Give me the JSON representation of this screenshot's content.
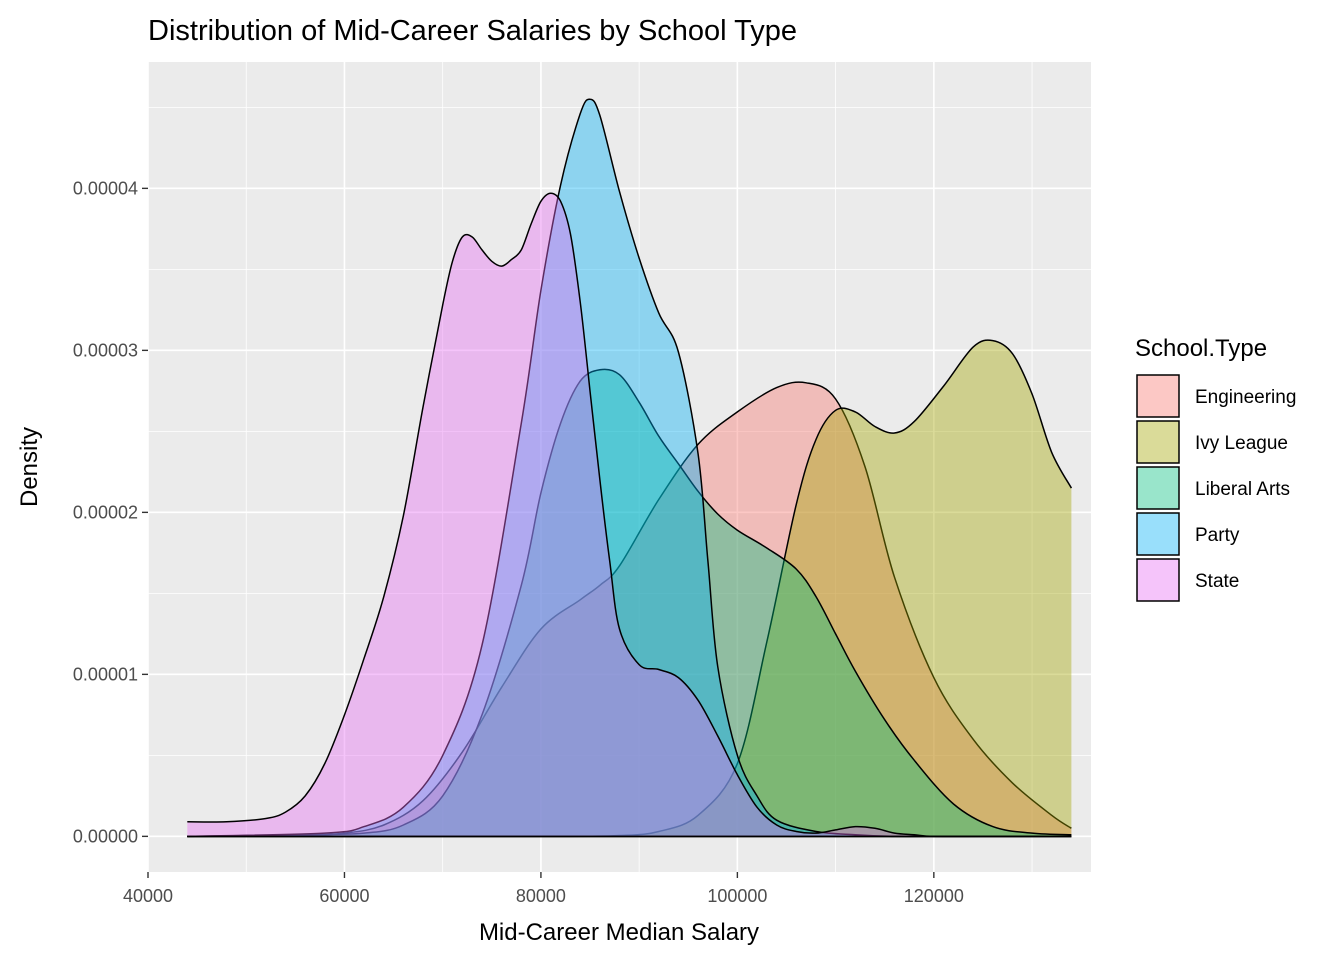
{
  "chart_data": {
    "type": "area",
    "title": "Distribution of Mid-Career Salaries by School Type",
    "xlabel": "Mid-Career Median Salary",
    "ylabel": "Density",
    "xlim": [
      40000,
      136000
    ],
    "ylim": [
      -2.2e-06,
      4.78e-05
    ],
    "x_ticks": [
      40000,
      60000,
      80000,
      100000,
      120000
    ],
    "x_tick_labels": [
      "40000",
      "60000",
      "80000",
      "100000",
      "120000"
    ],
    "y_ticks": [
      0,
      1e-05,
      2e-05,
      3e-05,
      4e-05
    ],
    "y_tick_labels": [
      "0.00000",
      "0.00001",
      "0.00002",
      "0.00003",
      "0.00004"
    ],
    "grid": true,
    "legend": {
      "title": "School.Type",
      "position": "right",
      "entries": [
        "Engineering",
        "Ivy League",
        "Liberal Arts",
        "Party",
        "State"
      ]
    },
    "series": [
      {
        "name": "Engineering",
        "color": "#F8766D",
        "x": [
          44000,
          55000,
          60000,
          64000,
          68000,
          72000,
          76000,
          80000,
          84000,
          86000,
          88000,
          92000,
          96000,
          100000,
          104000,
          107000,
          110000,
          113000,
          116000,
          120000,
          124000,
          128000,
          132000,
          134000
        ],
        "y": [
          0,
          5e-08,
          2e-07,
          7e-07,
          2.2e-06,
          5.2e-06,
          9.2e-06,
          1.28e-05,
          1.46e-05,
          1.55e-05,
          1.67e-05,
          2.08e-05,
          2.42e-05,
          2.62e-05,
          2.77e-05,
          2.8e-05,
          2.7e-05,
          2.28e-05,
          1.6e-05,
          9.8e-06,
          6e-06,
          3.3e-06,
          1.3e-06,
          5e-07
        ]
      },
      {
        "name": "Ivy League",
        "color": "#A3A500",
        "x": [
          44000,
          80000,
          88000,
          92000,
          96000,
          100000,
          103000,
          106000,
          108000,
          110000,
          112000,
          114000,
          116000,
          118000,
          121000,
          124000,
          126000,
          128000,
          130000,
          132000,
          134000
        ],
        "y": [
          0,
          0,
          5e-08,
          3e-07,
          1.3e-06,
          4.5e-06,
          1.2e-05,
          2.05e-05,
          2.45e-05,
          2.63e-05,
          2.62e-05,
          2.53e-05,
          2.49e-05,
          2.56e-05,
          2.78e-05,
          3.02e-05,
          3.06e-05,
          2.98e-05,
          2.73e-05,
          2.37e-05,
          2.15e-05
        ]
      },
      {
        "name": "Liberal Arts",
        "color": "#00BF7D",
        "x": [
          44000,
          56000,
          62000,
          66000,
          70000,
          74000,
          78000,
          80000,
          82000,
          84000,
          86000,
          88000,
          90000,
          92000,
          94000,
          96000,
          98000,
          100000,
          103000,
          106000,
          108000,
          110000,
          112000,
          115000,
          118000,
          122000,
          126000,
          130000,
          134000
        ],
        "y": [
          0,
          1e-07,
          2e-07,
          7e-07,
          2.5e-06,
          7.5e-06,
          1.55e-05,
          2.12e-05,
          2.55e-05,
          2.81e-05,
          2.88e-05,
          2.85e-05,
          2.68e-05,
          2.47e-05,
          2.3e-05,
          2.13e-05,
          1.99e-05,
          1.89e-05,
          1.78e-05,
          1.65e-05,
          1.48e-05,
          1.25e-05,
          1.02e-05,
          7.2e-06,
          4.7e-06,
          2e-06,
          6e-07,
          2e-07,
          1e-07
        ]
      },
      {
        "name": "Party",
        "color": "#00B0F6",
        "x": [
          44000,
          58000,
          62000,
          66000,
          70000,
          74000,
          78000,
          80000,
          82000,
          84000,
          85000,
          86000,
          88000,
          90000,
          92000,
          94000,
          96000,
          97000,
          98000,
          100000,
          102000,
          104000,
          108000,
          112000,
          116000,
          120000,
          134000
        ],
        "y": [
          0,
          2e-07,
          6e-07,
          1.8e-06,
          5e-06,
          1.18e-05,
          2.55e-05,
          3.37e-05,
          4.02e-05,
          4.46e-05,
          4.55e-05,
          4.45e-05,
          3.98e-05,
          3.57e-05,
          3.23e-05,
          2.99e-05,
          2.36e-05,
          1.7e-05,
          1.05e-05,
          5e-06,
          2.5e-06,
          1e-06,
          3e-07,
          1e-07,
          0,
          0,
          0
        ]
      },
      {
        "name": "State",
        "color": "#E76BF3",
        "x": [
          44000,
          48000,
          52000,
          54000,
          56000,
          58000,
          60000,
          62000,
          64000,
          66000,
          68000,
          70000,
          71000,
          72000,
          73000,
          74000,
          75000,
          76000,
          77000,
          78000,
          79000,
          80000,
          81000,
          82000,
          83000,
          84000,
          85000,
          86000,
          87000,
          88000,
          90000,
          92000,
          94000,
          96000,
          98000,
          100000,
          102000,
          104000,
          106000,
          108000,
          110000,
          112000,
          114000,
          116000,
          118000,
          120000,
          125000,
          130000,
          134000
        ],
        "y": [
          9e-07,
          9e-07,
          1.1e-06,
          1.5e-06,
          2.5e-06,
          4.5e-06,
          7.5e-06,
          1.1e-05,
          1.48e-05,
          1.98e-05,
          2.65e-05,
          3.28e-05,
          3.55e-05,
          3.7e-05,
          3.7e-05,
          3.62e-05,
          3.55e-05,
          3.52e-05,
          3.56e-05,
          3.62e-05,
          3.78e-05,
          3.92e-05,
          3.97e-05,
          3.92e-05,
          3.72e-05,
          3.3e-05,
          2.75e-05,
          2.2e-05,
          1.7e-05,
          1.28e-05,
          1.06e-05,
          1.03e-05,
          9.8e-06,
          8.4e-06,
          6.2e-06,
          3.8e-06,
          1.8e-06,
          7e-07,
          3e-07,
          2e-07,
          4e-07,
          6e-07,
          5e-07,
          2e-07,
          1e-07,
          0,
          0,
          0,
          0
        ]
      }
    ]
  }
}
